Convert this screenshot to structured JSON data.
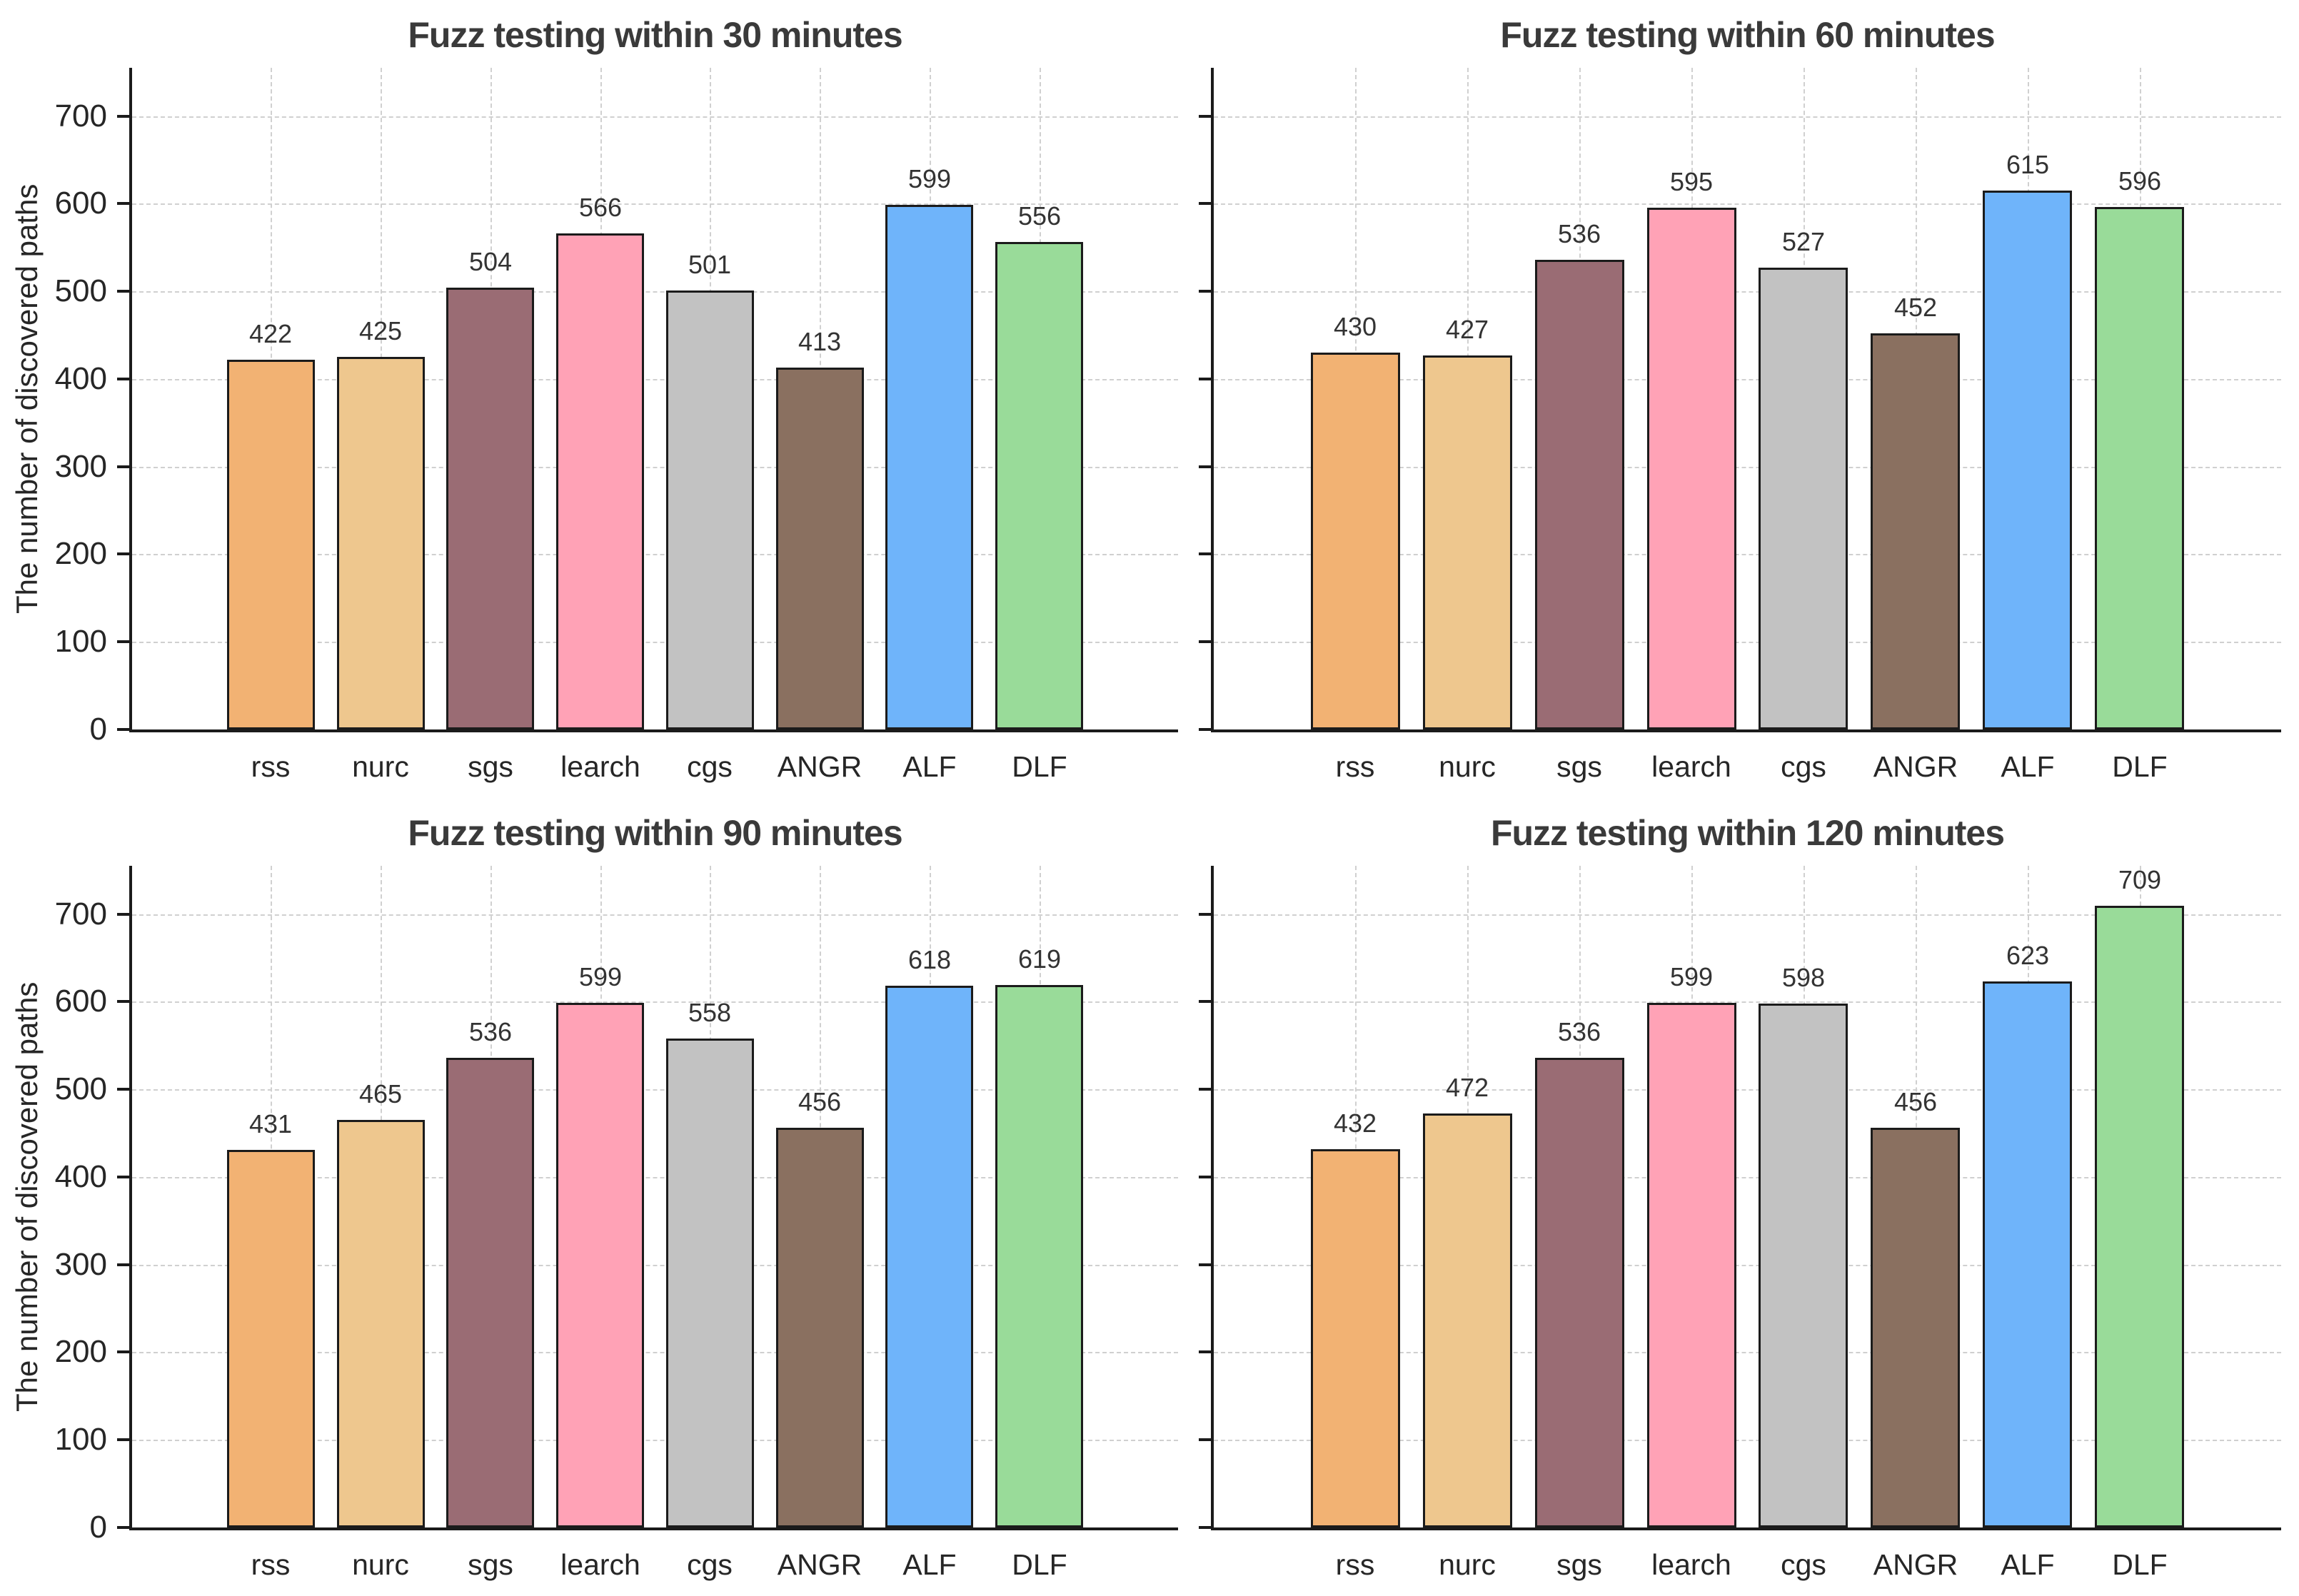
{
  "figure": {
    "layout": "2x2 grid of bar charts",
    "background_color": "#ffffff"
  },
  "style": {
    "bar_edge_color": "#1b1b1b",
    "grid_color": "#d0d0d0",
    "axis_color": "#1b1b1b",
    "title_color": "#3a3a3a",
    "tick_label_color": "#262626",
    "value_label_color": "#333333"
  },
  "chart_data": [
    {
      "type": "bar",
      "title": "Fuzz testing within 30 minutes",
      "categories": [
        "rss",
        "nurc",
        "sgs",
        "learch",
        "cgs",
        "ANGR",
        "ALF",
        "DLF"
      ],
      "values": [
        422,
        425,
        504,
        566,
        501,
        413,
        599,
        556
      ],
      "colors": [
        "#F2B273",
        "#EEC78E",
        "#9A6C74",
        "#FFA2B6",
        "#C2C2C2",
        "#8A7060",
        "#6FB4FA",
        "#99DB99"
      ],
      "xlabel": "",
      "ylabel": "The number of discovered paths",
      "ylim": [
        0,
        755
      ],
      "yticks": [
        0,
        100,
        200,
        300,
        400,
        500,
        600,
        700
      ],
      "grid": true,
      "grid_style": "dashed",
      "legend": "none",
      "show_y_tick_labels": true,
      "bar_value_labels": true
    },
    {
      "type": "bar",
      "title": "Fuzz testing within 60 minutes",
      "categories": [
        "rss",
        "nurc",
        "sgs",
        "learch",
        "cgs",
        "ANGR",
        "ALF",
        "DLF"
      ],
      "values": [
        430,
        427,
        536,
        595,
        527,
        452,
        615,
        596
      ],
      "colors": [
        "#F2B273",
        "#EEC78E",
        "#9A6C74",
        "#FFA2B6",
        "#C2C2C2",
        "#8A7060",
        "#6FB4FA",
        "#99DB99"
      ],
      "xlabel": "",
      "ylabel": "",
      "ylim": [
        0,
        755
      ],
      "yticks": [
        0,
        100,
        200,
        300,
        400,
        500,
        600,
        700
      ],
      "grid": true,
      "grid_style": "dashed",
      "legend": "none",
      "show_y_tick_labels": false,
      "bar_value_labels": true
    },
    {
      "type": "bar",
      "title": "Fuzz testing within 90 minutes",
      "categories": [
        "rss",
        "nurc",
        "sgs",
        "learch",
        "cgs",
        "ANGR",
        "ALF",
        "DLF"
      ],
      "values": [
        431,
        465,
        536,
        599,
        558,
        456,
        618,
        619
      ],
      "colors": [
        "#F2B273",
        "#EEC78E",
        "#9A6C74",
        "#FFA2B6",
        "#C2C2C2",
        "#8A7060",
        "#6FB4FA",
        "#99DB99"
      ],
      "xlabel": "",
      "ylabel": "The number of discovered paths",
      "ylim": [
        0,
        755
      ],
      "yticks": [
        0,
        100,
        200,
        300,
        400,
        500,
        600,
        700
      ],
      "grid": true,
      "grid_style": "dashed",
      "legend": "none",
      "show_y_tick_labels": true,
      "bar_value_labels": true
    },
    {
      "type": "bar",
      "title": "Fuzz testing within 120 minutes",
      "categories": [
        "rss",
        "nurc",
        "sgs",
        "learch",
        "cgs",
        "ANGR",
        "ALF",
        "DLF"
      ],
      "values": [
        432,
        472,
        536,
        599,
        598,
        456,
        623,
        709
      ],
      "colors": [
        "#F2B273",
        "#EEC78E",
        "#9A6C74",
        "#FFA2B6",
        "#C2C2C2",
        "#8A7060",
        "#6FB4FA",
        "#99DB99"
      ],
      "xlabel": "",
      "ylabel": "",
      "ylim": [
        0,
        755
      ],
      "yticks": [
        0,
        100,
        200,
        300,
        400,
        500,
        600,
        700
      ],
      "grid": true,
      "grid_style": "dashed",
      "legend": "none",
      "show_y_tick_labels": false,
      "bar_value_labels": true
    }
  ]
}
